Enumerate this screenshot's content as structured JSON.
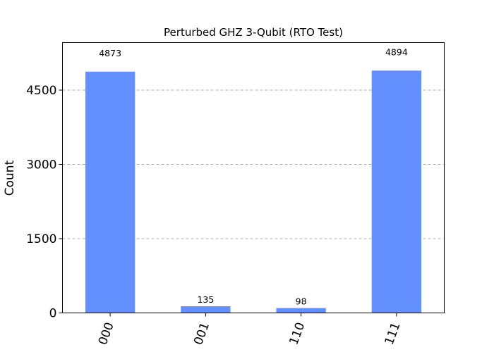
{
  "chart_data": {
    "type": "bar",
    "title": "Perturbed GHZ 3-Qubit (RTO Test)",
    "xlabel": "",
    "ylabel": "Count",
    "categories": [
      "000",
      "001",
      "110",
      "111"
    ],
    "values": [
      4873,
      135,
      98,
      4894
    ],
    "yticks": [
      0,
      1500,
      3000,
      4500
    ],
    "ylim": [
      0,
      5460
    ],
    "grid": true,
    "bar_color": "#648fff",
    "value_labels": true
  }
}
